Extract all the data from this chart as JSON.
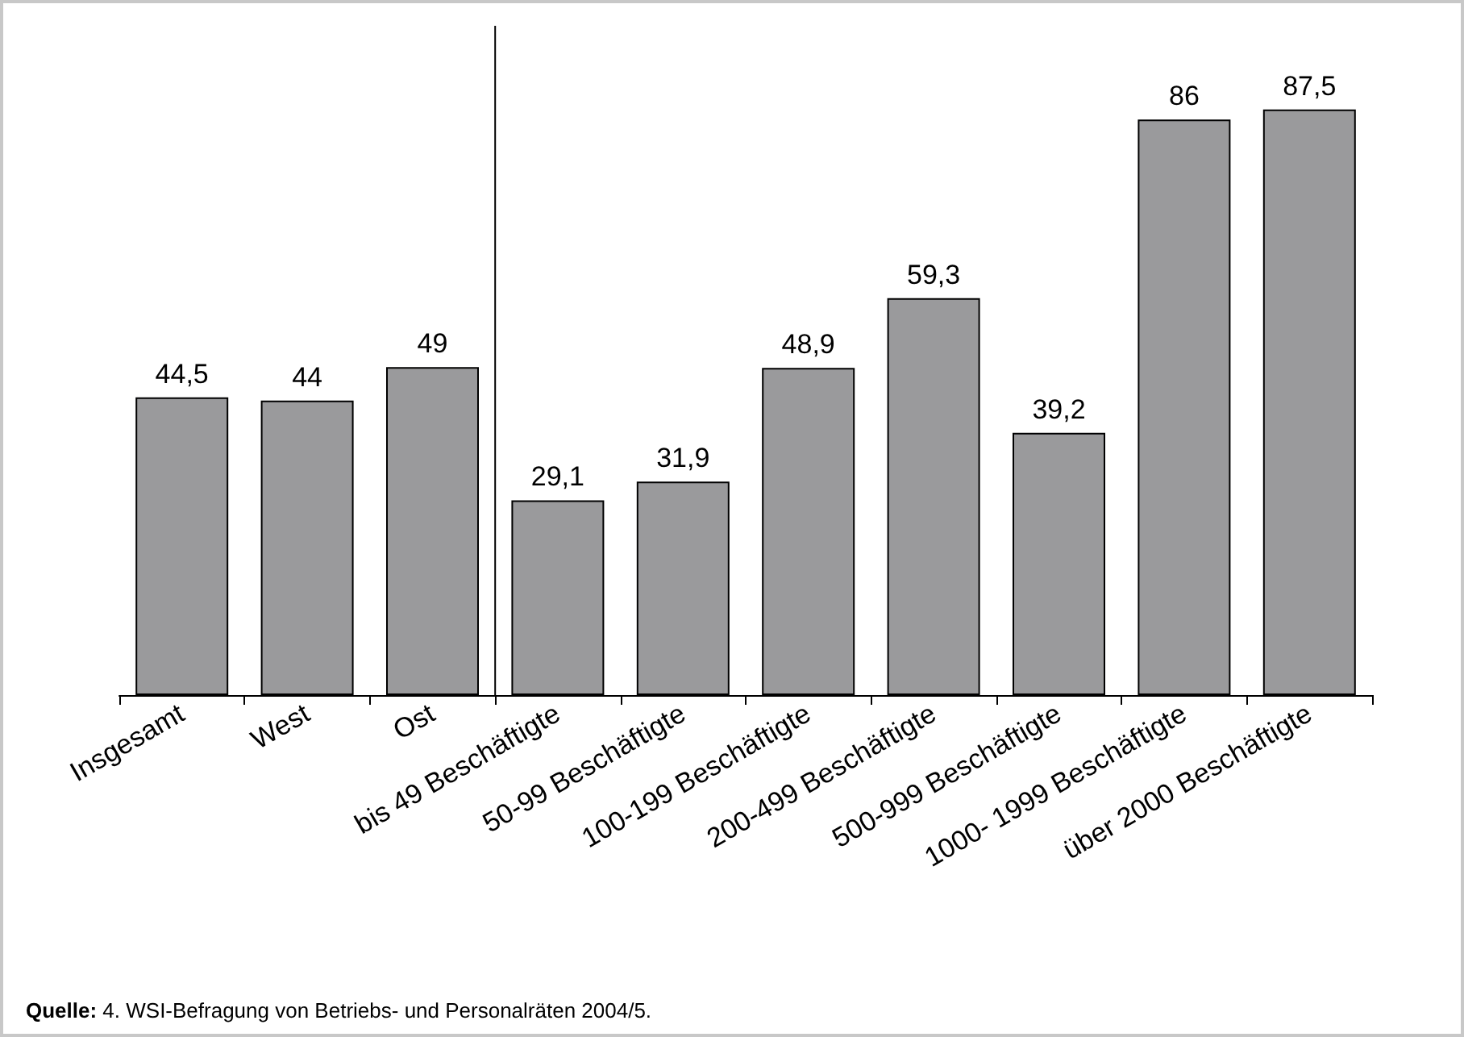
{
  "chart_data": {
    "type": "bar",
    "categories": [
      "Insgesamt",
      "West",
      "Ost",
      "bis 49 Beschäftigte",
      "50-99 Beschäftigte",
      "100-199 Beschäftigte",
      "200-499 Beschäftigte",
      "500-999 Beschäftigte",
      "1000- 1999 Beschäftigte",
      "über 2000 Beschäftigte"
    ],
    "values": [
      44.5,
      44,
      49,
      29.1,
      31.9,
      48.9,
      59.3,
      39.2,
      86,
      87.5
    ],
    "color": "#9a9a9c",
    "value_labels": [
      "44,5",
      "44",
      "49",
      "29,1",
      "31,9",
      "48,9",
      "59,3",
      "39,2",
      "86",
      "87,5"
    ],
    "annotations": [
      "Quelle: 4. WSI-Befragung von Betriebs- und Personalräten 2004/5."
    ]
  }
}
